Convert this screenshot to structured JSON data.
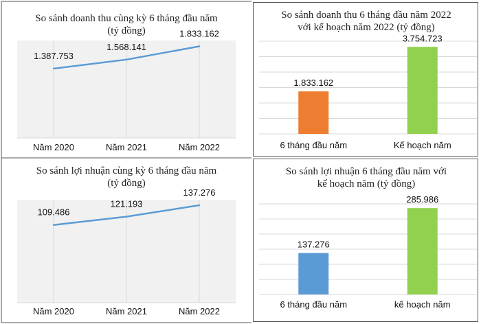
{
  "chart_data": [
    {
      "type": "line",
      "title": [
        "So sánh doanh thu cùng kỳ 6 tháng đầu năm",
        "(tỷ đồng)"
      ],
      "categories": [
        "Năm 2020",
        "Năm 2021",
        "Năm 2022"
      ],
      "values": [
        1387.753,
        1568.141,
        1833.162
      ],
      "value_labels": [
        "1.387.753",
        "1.568.141",
        "1.833.162"
      ],
      "color": "#5B9BD5",
      "grid": "vertical",
      "ylim": [
        0,
        1950
      ]
    },
    {
      "type": "bar",
      "title": [
        "So sánh doanh thu 6 tháng đầu năm 2022",
        "với kế hoạch năm 2022 (tỷ đồng)"
      ],
      "categories": [
        "6 tháng đầu năm",
        "Kế hoạch năm"
      ],
      "values": [
        1833.162,
        3754.723
      ],
      "value_labels": [
        "1.833.162",
        "3.754.723"
      ],
      "colors": [
        "#ED7D31",
        "#92D050"
      ],
      "grid": "horizontal",
      "ylim": [
        0,
        4000
      ]
    },
    {
      "type": "line",
      "title": [
        "So sánh lợi nhuận cùng kỳ 6 tháng đầu năm",
        "(tỷ đồng)"
      ],
      "categories": [
        "Năm 2020",
        "Năm 2021",
        "Năm 2022"
      ],
      "values": [
        109.486,
        121.193,
        137.276
      ],
      "value_labels": [
        "109.486",
        "121.193",
        "137.276"
      ],
      "color": "#5B9BD5",
      "grid": "vertical",
      "ylim": [
        0,
        145
      ]
    },
    {
      "type": "bar",
      "title": [
        "So sánh lợi nhuận 6 tháng đầu năm với",
        "kế hoạch năm (tỷ đồng)"
      ],
      "categories": [
        "6 tháng đầu năm",
        "kế hoạch năm"
      ],
      "values": [
        137.276,
        285.986
      ],
      "value_labels": [
        "137.276",
        "285.986"
      ],
      "colors": [
        "#5B9BD5",
        "#92D050"
      ],
      "grid": "horizontal",
      "ylim": [
        0,
        300
      ]
    }
  ]
}
